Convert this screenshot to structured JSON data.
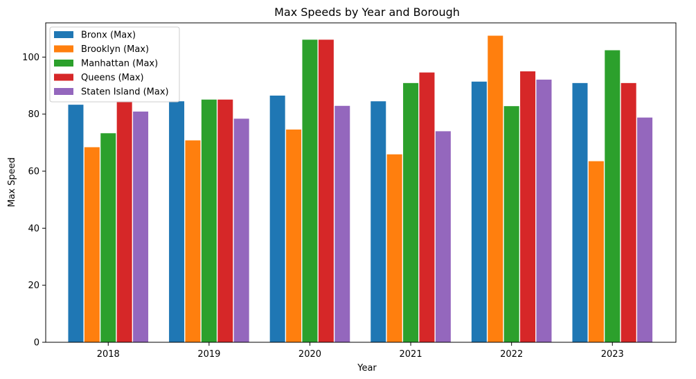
{
  "chart_data": {
    "type": "bar",
    "title": "Max Speeds by Year and Borough",
    "xlabel": "Year",
    "ylabel": "Max Speed",
    "categories": [
      "2018",
      "2019",
      "2020",
      "2021",
      "2022",
      "2023"
    ],
    "ylim": [
      0,
      112
    ],
    "yticks": [
      0,
      20,
      40,
      60,
      80,
      100
    ],
    "grid": false,
    "legend_position": "top-left",
    "series": [
      {
        "name": "Bronx (Max)",
        "color": "#1f77b4",
        "values": [
          83.3,
          84.5,
          86.5,
          84.5,
          91.4,
          90.9
        ]
      },
      {
        "name": "Brooklyn (Max)",
        "color": "#ff7f0e",
        "values": [
          68.4,
          70.8,
          74.6,
          65.9,
          107.5,
          63.5
        ]
      },
      {
        "name": "Manhattan (Max)",
        "color": "#2ca02c",
        "values": [
          73.3,
          85.1,
          106.1,
          90.9,
          82.8,
          102.4
        ]
      },
      {
        "name": "Queens (Max)",
        "color": "#d62728",
        "values": [
          84.5,
          85.1,
          106.1,
          94.6,
          95.0,
          90.9
        ]
      },
      {
        "name": "Staten Island (Max)",
        "color": "#9467bd",
        "values": [
          80.9,
          78.4,
          82.9,
          74.0,
          92.1,
          78.8
        ]
      }
    ]
  }
}
